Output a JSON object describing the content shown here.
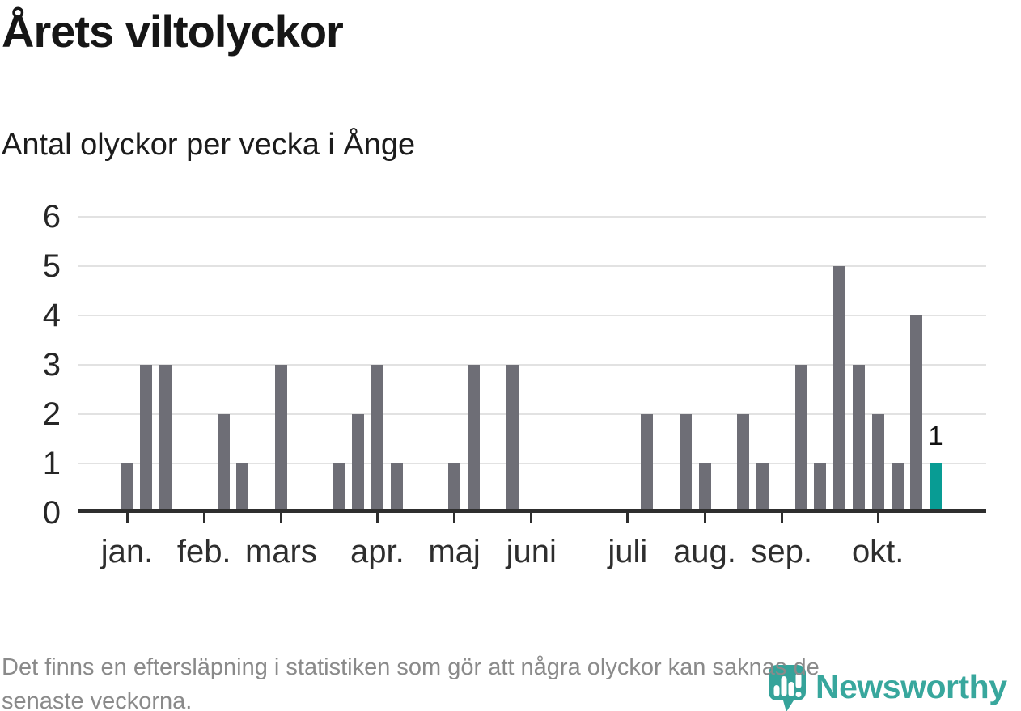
{
  "title": "Årets viltolyckor",
  "subtitle": "Antal olyckor per vecka i Ånge",
  "footer": {
    "line1": "Det finns en eftersläpning i statistiken som gör att några olyckor kan saknas de",
    "line2": "senaste veckorna."
  },
  "logo": {
    "brand": "Newsworthy",
    "icon": "newsworthy-speech-bubble-chart-icon"
  },
  "colors": {
    "bar": "#6e6e76",
    "highlight": "#089c94",
    "grid": "#e2e2e2",
    "axis": "#2e2e2e",
    "logo_teal": "#35a39a",
    "footer_text": "#8a8a8a"
  },
  "chart_data": {
    "type": "bar",
    "x_unit": "week",
    "title": "Årets viltolyckor",
    "subtitle": "Antal olyckor per vecka i Ånge",
    "values": [
      1,
      3,
      3,
      0,
      0,
      2,
      1,
      0,
      3,
      0,
      0,
      1,
      2,
      3,
      1,
      0,
      0,
      1,
      3,
      0,
      3,
      0,
      0,
      0,
      0,
      0,
      0,
      2,
      0,
      2,
      1,
      0,
      2,
      1,
      0,
      3,
      1,
      5,
      3,
      2,
      1,
      4,
      1
    ],
    "highlight_index": 42,
    "highlight_label": "1",
    "y_ticks": [
      "0",
      "1",
      "2",
      "3",
      "4",
      "5",
      "6"
    ],
    "ylim": [
      0,
      6
    ],
    "grid": true,
    "months": [
      {
        "label": "jan.",
        "slot": 0
      },
      {
        "label": "feb.",
        "slot": 4
      },
      {
        "label": "mars",
        "slot": 8
      },
      {
        "label": "apr.",
        "slot": 13
      },
      {
        "label": "maj",
        "slot": 17
      },
      {
        "label": "juni",
        "slot": 21
      },
      {
        "label": "juli",
        "slot": 26
      },
      {
        "label": "aug.",
        "slot": 30
      },
      {
        "label": "sep.",
        "slot": 34
      },
      {
        "label": "okt.",
        "slot": 39
      }
    ]
  }
}
